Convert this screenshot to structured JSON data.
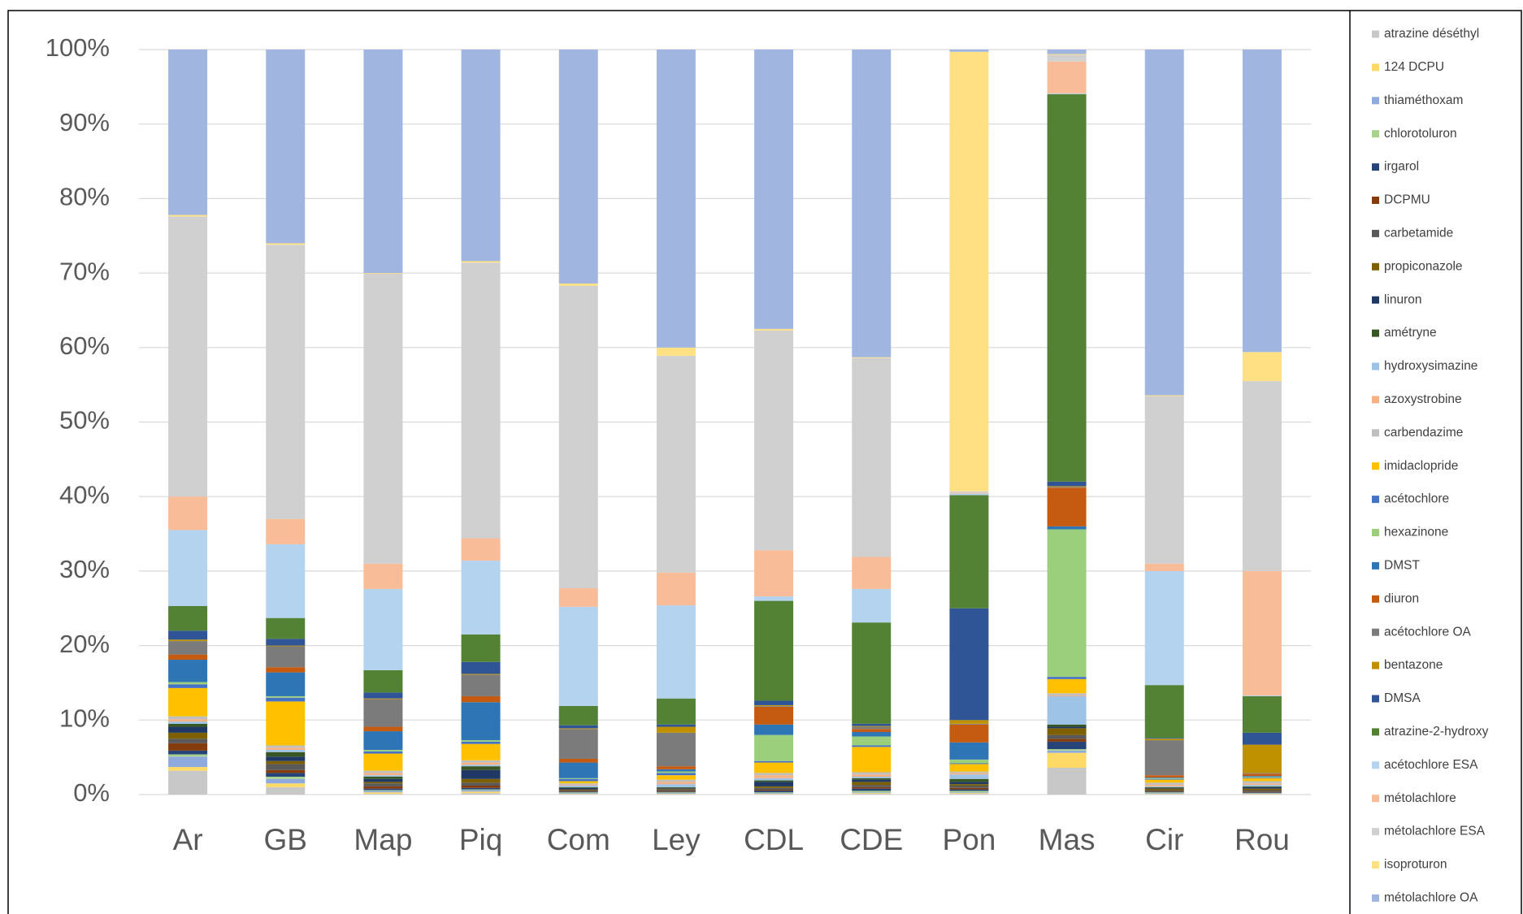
{
  "chart_data": {
    "type": "stacked_bar",
    "categories": [
      "Ar",
      "GB",
      "Map",
      "Piq",
      "Com",
      "Ley",
      "CDL",
      "CDE",
      "Pon",
      "Mas",
      "Cir",
      "Rou"
    ],
    "ylim": [
      0,
      100
    ],
    "yticks": [
      {
        "value": 0,
        "label": "0%"
      },
      {
        "value": 10,
        "label": "10%"
      },
      {
        "value": 20,
        "label": "20%"
      },
      {
        "value": 30,
        "label": "30%"
      },
      {
        "value": 40,
        "label": "40%"
      },
      {
        "value": 50,
        "label": "50%"
      },
      {
        "value": 60,
        "label": "60%"
      },
      {
        "value": 70,
        "label": "70%"
      },
      {
        "value": 80,
        "label": "80%"
      },
      {
        "value": 90,
        "label": "90%"
      },
      {
        "value": 100,
        "label": "100%"
      }
    ],
    "grid": true,
    "legend": "right",
    "series": [
      {
        "name": "atrazine déséthyl",
        "color": "#c8c8c8",
        "values": [
          3.2,
          1.0,
          0.1,
          0.2,
          0.05,
          0.05,
          0.05,
          0.1,
          0.1,
          3.6,
          0.05,
          0.05
        ]
      },
      {
        "name": "124 DCPU",
        "color": "#ffd966",
        "values": [
          0.5,
          0.5,
          0.2,
          0.2,
          0.05,
          0.05,
          0.05,
          0.1,
          0.1,
          2.0,
          0.05,
          0.05
        ]
      },
      {
        "name": "thiaméthoxam",
        "color": "#8faadc",
        "values": [
          1.4,
          0.6,
          0.2,
          0.2,
          0.1,
          0.1,
          0.1,
          0.1,
          0.1,
          0.3,
          0.1,
          0.05
        ]
      },
      {
        "name": "chlorotoluron",
        "color": "#a9d18e",
        "values": [
          0.3,
          0.3,
          0.1,
          0.1,
          0.1,
          0.1,
          0.1,
          0.2,
          0.2,
          0.2,
          0.1,
          0.05
        ]
      },
      {
        "name": "irgarol",
        "color": "#264478",
        "values": [
          0.5,
          0.5,
          0.2,
          0.2,
          0.1,
          0.1,
          0.2,
          0.3,
          0.2,
          1.0,
          0.1,
          0.1
        ]
      },
      {
        "name": "DCPMU",
        "color": "#843c0c",
        "values": [
          1.0,
          0.4,
          0.3,
          0.3,
          0.1,
          0.1,
          0.1,
          0.2,
          0.2,
          0.4,
          0.1,
          0.1
        ]
      },
      {
        "name": "carbetamide",
        "color": "#595959",
        "values": [
          0.6,
          0.8,
          0.4,
          0.4,
          0.1,
          0.2,
          0.3,
          0.3,
          0.3,
          0.5,
          0.1,
          0.2
        ]
      },
      {
        "name": "propiconazole",
        "color": "#7f6000",
        "values": [
          0.8,
          0.4,
          0.2,
          0.5,
          0.1,
          0.1,
          0.2,
          0.4,
          0.2,
          0.9,
          0.2,
          0.2
        ]
      },
      {
        "name": "linuron",
        "color": "#1f3864",
        "values": [
          0.8,
          0.6,
          0.4,
          1.2,
          0.2,
          0.1,
          0.6,
          0.3,
          0.3,
          0.2,
          0.1,
          0.2
        ]
      },
      {
        "name": "amétryne",
        "color": "#375623",
        "values": [
          0.4,
          0.6,
          0.3,
          0.5,
          0.1,
          0.1,
          0.2,
          0.2,
          0.4,
          0.3,
          0.1,
          0.1
        ]
      },
      {
        "name": "hydroxysimazine",
        "color": "#9dc3e6",
        "values": [
          0.3,
          0.3,
          0.2,
          0.2,
          0.2,
          0.4,
          0.3,
          0.2,
          0.6,
          3.8,
          0.1,
          0.2
        ]
      },
      {
        "name": "azoxystrobine",
        "color": "#f4b183",
        "values": [
          0.3,
          0.3,
          0.3,
          0.3,
          0.1,
          0.3,
          0.4,
          0.3,
          0.2,
          0.1,
          0.2,
          0.2
        ]
      },
      {
        "name": "carbendazime",
        "color": "#bfbfbf",
        "values": [
          0.4,
          0.3,
          0.3,
          0.3,
          0.2,
          0.3,
          0.3,
          0.3,
          0.2,
          0.3,
          0.3,
          0.3
        ]
      },
      {
        "name": "imidaclopride",
        "color": "#ffc000",
        "values": [
          3.8,
          5.9,
          2.3,
          2.2,
          0.3,
          0.6,
          1.4,
          3.4,
          1.0,
          1.9,
          0.4,
          0.4
        ]
      },
      {
        "name": "acétochlore",
        "color": "#4472c4",
        "values": [
          0.5,
          0.5,
          0.3,
          0.3,
          0.3,
          0.3,
          0.2,
          0.2,
          0.1,
          0.3,
          0.1,
          0.1
        ]
      },
      {
        "name": "hexazinone",
        "color": "#9bcf7b",
        "values": [
          0.3,
          0.2,
          0.2,
          0.2,
          0.1,
          0.2,
          3.5,
          1.2,
          0.5,
          19.8,
          0.1,
          0.1
        ]
      },
      {
        "name": "DMST",
        "color": "#2e75b6",
        "values": [
          3,
          3.2,
          2.5,
          5.1,
          2.1,
          0.3,
          1.4,
          0.6,
          2.3,
          0.4,
          0.1,
          0.1
        ]
      },
      {
        "name": "diuron",
        "color": "#c55a11",
        "values": [
          0.7,
          0.7,
          0.6,
          0.8,
          0.5,
          0.4,
          2.4,
          0.4,
          2.4,
          5.2,
          0.3,
          0.3
        ]
      },
      {
        "name": "acétochlore OA",
        "color": "#7b7b7b",
        "values": [
          1.8,
          2.8,
          3.7,
          2.9,
          4,
          4.5,
          0.1,
          0.3,
          0.1,
          0.1,
          4.7,
          0.1
        ]
      },
      {
        "name": "bentazone",
        "color": "#bf9000",
        "values": [
          0.2,
          0.1,
          0.1,
          0.1,
          0.1,
          0.8,
          0.1,
          0.1,
          0.5,
          0.1,
          0.2,
          3.8
        ]
      },
      {
        "name": "DMSA",
        "color": "#2f5597",
        "values": [
          1.2,
          0.9,
          0.8,
          1.6,
          0.4,
          0.3,
          0.6,
          0.3,
          15,
          0.6,
          0.1,
          1.6
        ]
      },
      {
        "name": "atrazine-2-hydroxy",
        "color": "#548235",
        "values": [
          3.3,
          2.8,
          3,
          3.7,
          2.6,
          3.5,
          13.4,
          13.6,
          15.2,
          52,
          7.1,
          4.9
        ]
      },
      {
        "name": "acétochlore ESA",
        "color": "#b4d3ee",
        "values": [
          10.2,
          9.9,
          10.9,
          9.9,
          13.3,
          12.5,
          0.6,
          4.5,
          0.2,
          0.1,
          15.3,
          0.1
        ]
      },
      {
        "name": "métolachlore",
        "color": "#f8bc98",
        "values": [
          4.5,
          3.4,
          3.4,
          3,
          2.5,
          4.4,
          6.2,
          4.3,
          0.1,
          4.3,
          1,
          16.7
        ]
      },
      {
        "name": "métolachlore ESA",
        "color": "#d0d0d0",
        "values": [
          37.6,
          36.8,
          38.9,
          37,
          40.6,
          29.1,
          29.5,
          26.7,
          0.2,
          0.9,
          22.5,
          25.5
        ]
      },
      {
        "name": "isoproturon",
        "color": "#ffe083",
        "values": [
          0.2,
          0.2,
          0.1,
          0.2,
          0.3,
          1.1,
          0.2,
          0.1,
          59,
          0.1,
          0.1,
          3.9
        ]
      },
      {
        "name": "métolachlore OA",
        "color": "#a0b6e0",
        "values": [
          22.2,
          26,
          30,
          28.4,
          31.4,
          40,
          37.5,
          41.3,
          0.3,
          0.6,
          46.4,
          40.6
        ]
      }
    ]
  }
}
